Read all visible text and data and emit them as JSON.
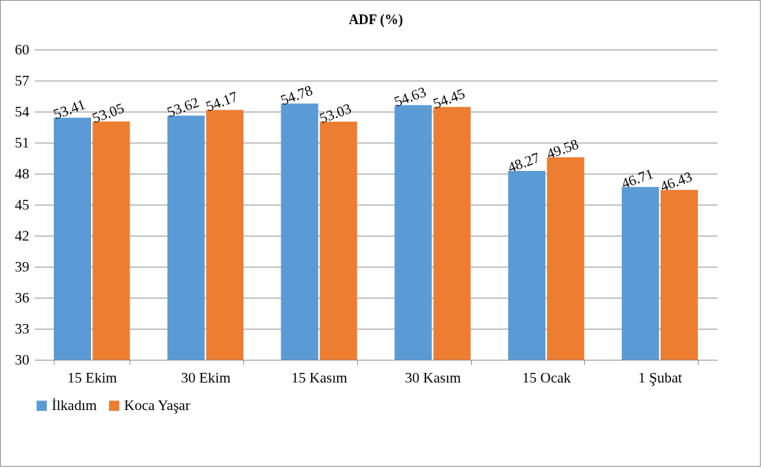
{
  "chart_data": {
    "type": "bar",
    "title": "ADF (%)",
    "categories": [
      "15 Ekim",
      "30 Ekim",
      "15 Kasım",
      "30 Kasım",
      "15 Ocak",
      "1 Şubat"
    ],
    "series": [
      {
        "name": "İlkadım",
        "color": "#5b9bd5",
        "values": [
          53.41,
          53.62,
          54.78,
          54.63,
          48.27,
          46.71
        ]
      },
      {
        "name": "Koca Yaşar",
        "color": "#ed7d31",
        "values": [
          53.05,
          54.17,
          53.03,
          54.45,
          49.58,
          46.43
        ]
      }
    ],
    "ylim": [
      30,
      60
    ],
    "yticks": [
      30,
      33,
      36,
      39,
      42,
      45,
      48,
      51,
      54,
      57,
      60
    ],
    "grid": "y",
    "legend": "bottom",
    "data_labels": true
  }
}
